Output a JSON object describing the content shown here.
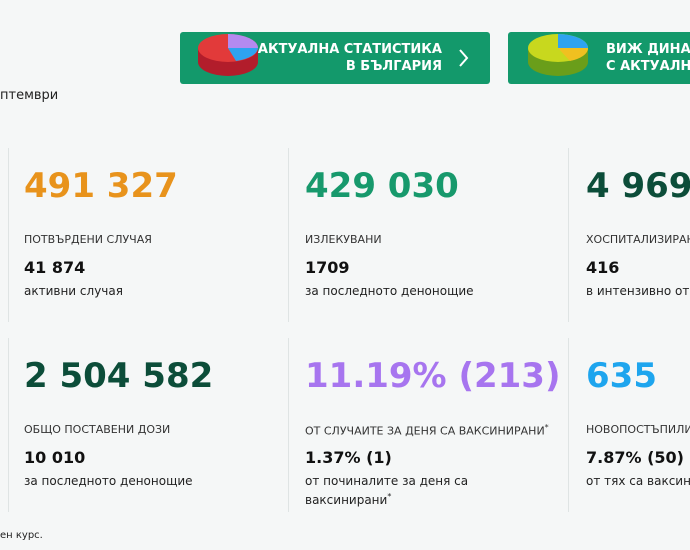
{
  "header": {
    "date_fragment": "птември",
    "buttons": [
      {
        "line1": "АКТУАЛНА СТАТИСТИКА",
        "line2": "В БЪЛГАРИЯ"
      },
      {
        "line1": "ВИЖ ДИНАМ",
        "line2": "С АКТУАЛНА"
      }
    ]
  },
  "cards": [
    {
      "value": "491 327",
      "label": "ПОТВЪРДЕНИ СЛУЧАЯ",
      "sub_value": "41 874",
      "sub_label": "активни случая"
    },
    {
      "value": "429 030",
      "label": "ИЗЛЕКУВАНИ",
      "sub_value": "1709",
      "sub_label": "за последното денонощие"
    },
    {
      "value": "4 969",
      "label": "ХОСПИТАЛИЗИРАН",
      "sub_value": "416",
      "sub_label": "в интензивно от"
    },
    {
      "value": "2 504 582",
      "label": "ОБЩО ПОСТАВЕНИ ДОЗИ",
      "sub_value": "10 010",
      "sub_label": "за последното денонощие"
    },
    {
      "value": "11.19% (213)",
      "label": "ОТ СЛУЧАИТЕ ЗА ДЕНЯ СА ВАКСИНИРАНИ",
      "label_mark": "*",
      "sub_value": "1.37% (1)",
      "sub_label": "от починалите за деня са ваксинирани",
      "sub_label_mark": "*"
    },
    {
      "value": "635",
      "label": "НОВОПОСТЪПИЛИ",
      "sub_value": "7.87% (50)",
      "sub_label": "от тях са ваксин"
    }
  ],
  "footer": {
    "note_fragment": "ен курс."
  }
}
